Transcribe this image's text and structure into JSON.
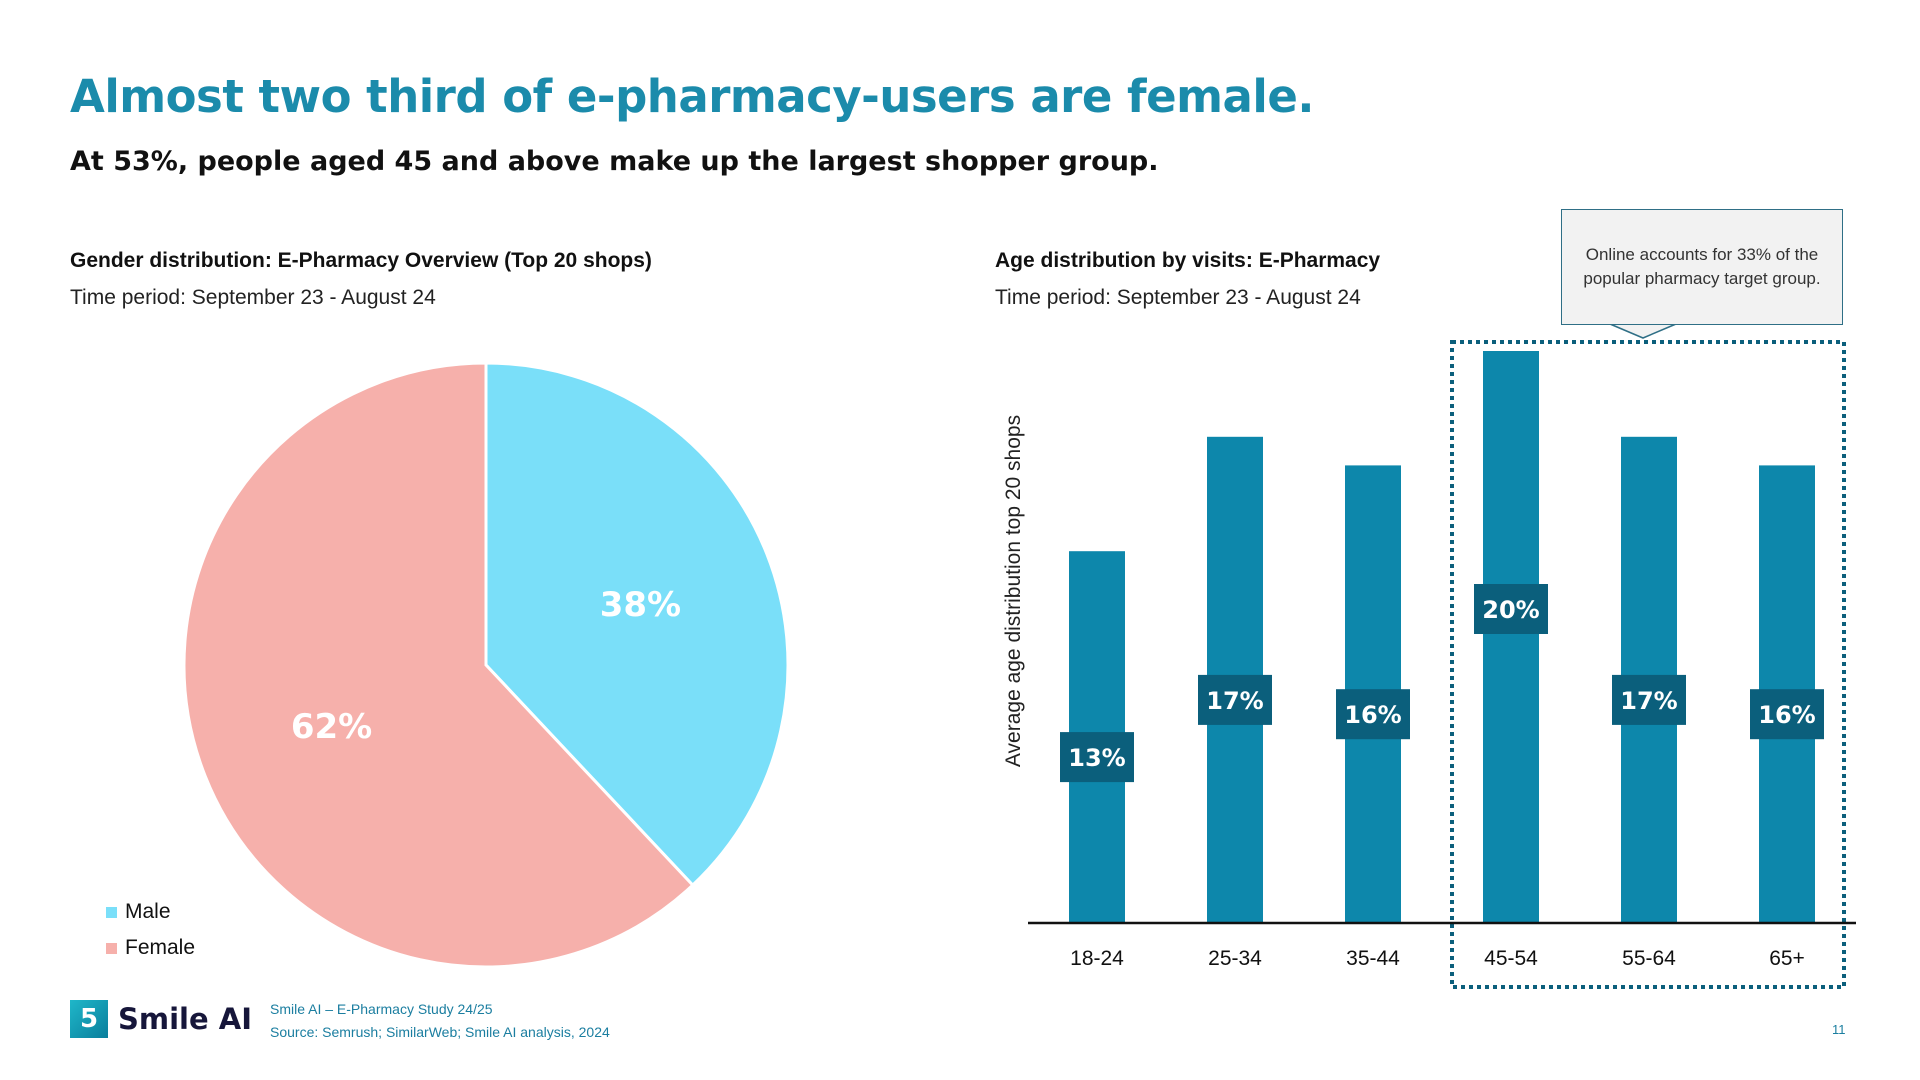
{
  "header": {
    "title": "Almost two third of e-pharmacy-users are female.",
    "subtitle": "At 53%, people aged 45 and above make up the largest shopper group."
  },
  "chart_data": [
    {
      "type": "pie",
      "title": "Gender distribution: E-Pharmacy Overview (Top 20 shops)",
      "subtitle": "Time period: September 23 - August 24",
      "slices": [
        {
          "name": "Male",
          "value": 38,
          "label": "38%",
          "color": "#7adff9"
        },
        {
          "name": "Female",
          "value": 62,
          "label": "62%",
          "color": "#f6b0ab"
        }
      ],
      "legend": "bottom-left"
    },
    {
      "type": "bar",
      "title": "Age distribution by visits: E-Pharmacy",
      "subtitle": "Time period: September 23 - August 24",
      "ylabel": "Average age distribution top 20 shops",
      "categories": [
        "18-24",
        "25-34",
        "35-44",
        "45-54",
        "55-64",
        "65+"
      ],
      "values": [
        13,
        17,
        16,
        20,
        17,
        16
      ],
      "labels": [
        "13%",
        "17%",
        "16%",
        "20%",
        "17%",
        "16%"
      ],
      "bar_color": "#0d87ab",
      "label_color": "#0b5f7c",
      "ylim": [
        0,
        20
      ],
      "grid": false,
      "highlight": {
        "categories": [
          "45-54",
          "55-64",
          "65+"
        ],
        "annotation": "Online accounts for 33% of the popular pharmacy target group."
      }
    }
  ],
  "footer": {
    "logo": "Smile AI",
    "study": "Smile AI – E-Pharmacy Study 24/25",
    "source": "Source: Semrush; SimilarWeb; Smile AI analysis, 2024",
    "page": "11"
  }
}
